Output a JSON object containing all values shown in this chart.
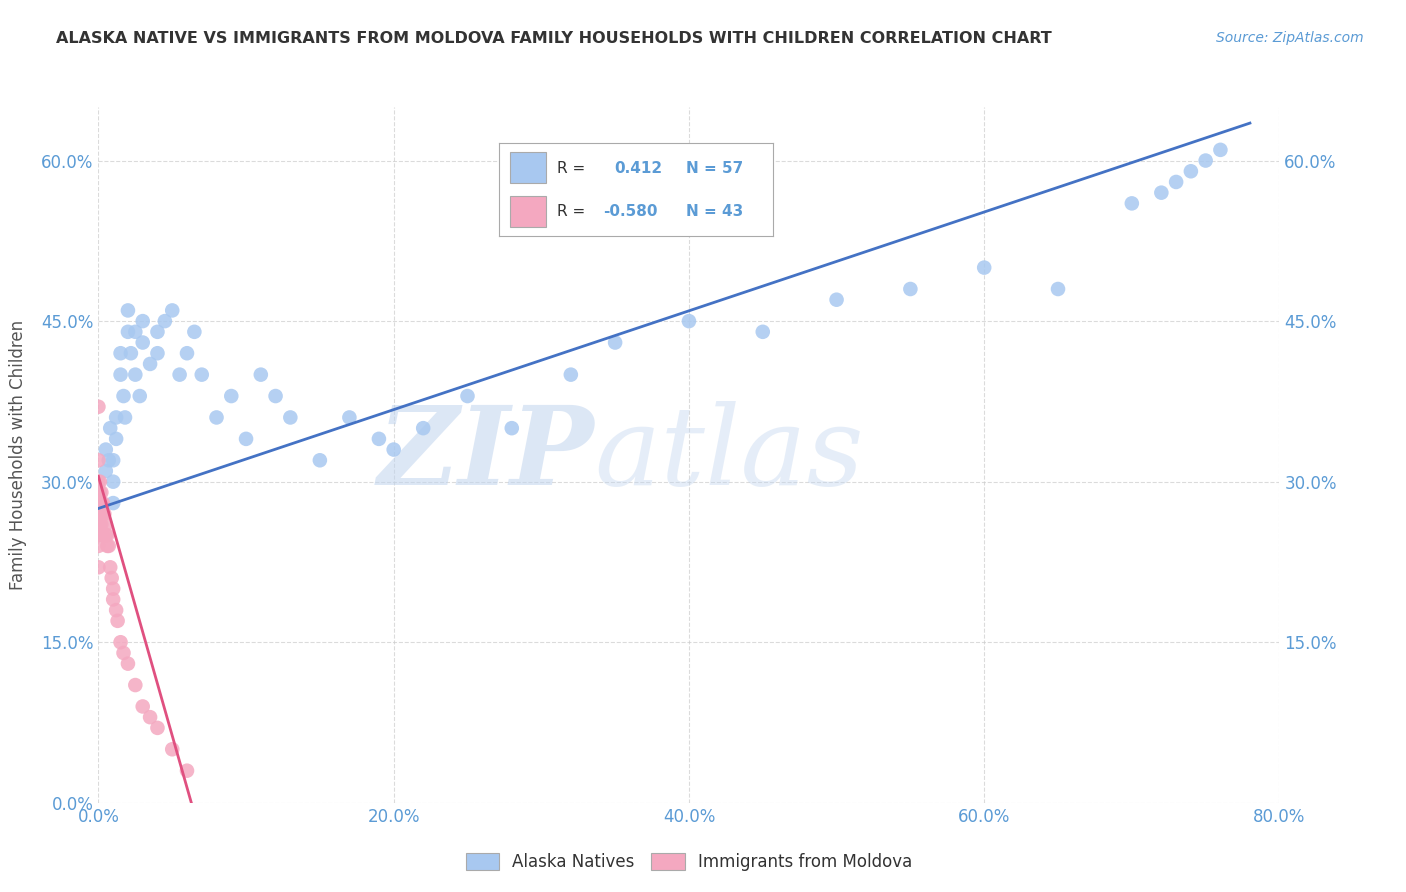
{
  "title": "ALASKA NATIVE VS IMMIGRANTS FROM MOLDOVA FAMILY HOUSEHOLDS WITH CHILDREN CORRELATION CHART",
  "source": "Source: ZipAtlas.com",
  "ylabel": "Family Households with Children",
  "watermark_zip": "ZIP",
  "watermark_atlas": "atlas",
  "legend_label1": "Alaska Natives",
  "legend_label2": "Immigrants from Moldova",
  "xlim": [
    0.0,
    0.8
  ],
  "ylim": [
    0.0,
    0.65
  ],
  "xticks": [
    0.0,
    0.2,
    0.4,
    0.6,
    0.8
  ],
  "yticks": [
    0.0,
    0.15,
    0.3,
    0.45,
    0.6
  ],
  "xtick_labels": [
    "0.0%",
    "20.0%",
    "40.0%",
    "60.0%",
    "80.0%"
  ],
  "ytick_labels": [
    "0.0%",
    "15.0%",
    "30.0%",
    "45.0%",
    "60.0%"
  ],
  "right_ytick_labels": [
    "15.0%",
    "30.0%",
    "45.0%",
    "60.0%"
  ],
  "blue_color": "#A8C8F0",
  "pink_color": "#F4A8C0",
  "blue_line_color": "#4472C4",
  "pink_line_color": "#E05080",
  "grid_color": "#CCCCCC",
  "background": "#FFFFFF",
  "blue_x": [
    0.005,
    0.005,
    0.007,
    0.008,
    0.01,
    0.01,
    0.01,
    0.012,
    0.012,
    0.015,
    0.015,
    0.017,
    0.018,
    0.02,
    0.02,
    0.022,
    0.025,
    0.025,
    0.028,
    0.03,
    0.03,
    0.035,
    0.04,
    0.04,
    0.045,
    0.05,
    0.055,
    0.06,
    0.065,
    0.07,
    0.08,
    0.09,
    0.1,
    0.11,
    0.12,
    0.13,
    0.15,
    0.17,
    0.19,
    0.2,
    0.22,
    0.25,
    0.28,
    0.32,
    0.35,
    0.4,
    0.45,
    0.5,
    0.55,
    0.6,
    0.65,
    0.7,
    0.72,
    0.73,
    0.74,
    0.75,
    0.76
  ],
  "blue_y": [
    0.31,
    0.33,
    0.32,
    0.35,
    0.28,
    0.3,
    0.32,
    0.34,
    0.36,
    0.4,
    0.42,
    0.38,
    0.36,
    0.44,
    0.46,
    0.42,
    0.4,
    0.44,
    0.38,
    0.43,
    0.45,
    0.41,
    0.42,
    0.44,
    0.45,
    0.46,
    0.4,
    0.42,
    0.44,
    0.4,
    0.36,
    0.38,
    0.34,
    0.4,
    0.38,
    0.36,
    0.32,
    0.36,
    0.34,
    0.33,
    0.35,
    0.38,
    0.35,
    0.4,
    0.43,
    0.45,
    0.44,
    0.47,
    0.48,
    0.5,
    0.48,
    0.56,
    0.57,
    0.58,
    0.59,
    0.6,
    0.61
  ],
  "pink_x": [
    0.0,
    0.0,
    0.0,
    0.0,
    0.0,
    0.0,
    0.0,
    0.0,
    0.0,
    0.0,
    0.001,
    0.001,
    0.001,
    0.001,
    0.001,
    0.002,
    0.002,
    0.002,
    0.002,
    0.003,
    0.003,
    0.003,
    0.004,
    0.005,
    0.005,
    0.006,
    0.006,
    0.007,
    0.008,
    0.009,
    0.01,
    0.01,
    0.012,
    0.013,
    0.015,
    0.017,
    0.02,
    0.025,
    0.03,
    0.035,
    0.04,
    0.05,
    0.06
  ],
  "pink_y": [
    0.37,
    0.32,
    0.3,
    0.29,
    0.28,
    0.27,
    0.26,
    0.25,
    0.24,
    0.22,
    0.3,
    0.29,
    0.28,
    0.27,
    0.26,
    0.29,
    0.28,
    0.27,
    0.26,
    0.28,
    0.27,
    0.25,
    0.27,
    0.26,
    0.25,
    0.25,
    0.24,
    0.24,
    0.22,
    0.21,
    0.2,
    0.19,
    0.18,
    0.17,
    0.15,
    0.14,
    0.13,
    0.11,
    0.09,
    0.08,
    0.07,
    0.05,
    0.03
  ],
  "blue_line_x": [
    0.0,
    0.78
  ],
  "blue_line_y": [
    0.275,
    0.635
  ],
  "pink_line_x": [
    0.0,
    0.065
  ],
  "pink_line_y": [
    0.305,
    -0.01
  ]
}
